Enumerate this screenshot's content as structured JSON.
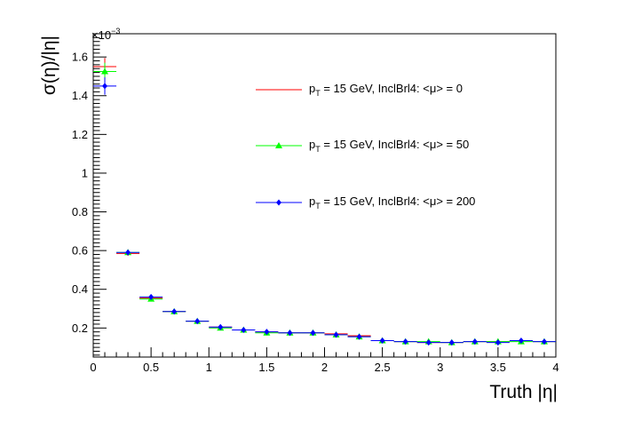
{
  "chart_data": {
    "type": "scatter",
    "xlabel": "Truth |η|",
    "ylabel": "σ(η)/|η|",
    "y_multiplier": "×10",
    "y_multiplier_exp": "−3",
    "xlim": [
      0,
      4
    ],
    "ylim": [
      0.05,
      1.72
    ],
    "xticks": [
      0,
      0.5,
      1,
      1.5,
      2,
      2.5,
      3,
      3.5,
      4
    ],
    "xtick_labels": [
      "0",
      "0.5",
      "1",
      "1.5",
      "2",
      "2.5",
      "3",
      "3.5",
      "4"
    ],
    "yticks": [
      0.2,
      0.4,
      0.6,
      0.8,
      1,
      1.2,
      1.4,
      1.6
    ],
    "ytick_labels": [
      "0.2",
      "0.4",
      "0.6",
      "0.8",
      "1",
      "1.2",
      "1.4",
      "1.6"
    ],
    "bin_half_width": 0.1,
    "x": [
      0.1,
      0.3,
      0.5,
      0.7,
      0.9,
      1.1,
      1.3,
      1.5,
      1.7,
      1.9,
      2.1,
      2.3,
      2.5,
      2.7,
      2.9,
      3.1,
      3.3,
      3.5,
      3.7,
      3.9
    ],
    "series": [
      {
        "name": "p_T = 15 GeV, InclBrl4: <μ> = 0",
        "legend_main": "p",
        "legend_sub": "T",
        "legend_rest": " = 15 GeV, InclBrl4: <μ> = 0",
        "color": "#ff0000",
        "marker": "none",
        "values": [
          1.55,
          0.585,
          0.355,
          0.285,
          0.235,
          0.205,
          0.19,
          0.18,
          0.175,
          0.175,
          0.17,
          0.16,
          0.135,
          0.13,
          0.125,
          0.125,
          0.13,
          0.13,
          0.135,
          0.13
        ],
        "errors": [
          0.045,
          0.012,
          0.008,
          0.006,
          0.005,
          0.005,
          0.004,
          0.004,
          0.004,
          0.004,
          0.004,
          0.004,
          0.003,
          0.003,
          0.003,
          0.003,
          0.003,
          0.003,
          0.003,
          0.003
        ]
      },
      {
        "name": "p_T = 15 GeV, InclBrl4: <μ> = 50",
        "legend_main": "p",
        "legend_sub": "T",
        "legend_rest": " = 15 GeV, InclBrl4: <μ> = 50",
        "color": "#00ff00",
        "marker": "triangle",
        "values": [
          1.525,
          0.59,
          0.35,
          0.285,
          0.235,
          0.2,
          0.19,
          0.175,
          0.175,
          0.175,
          0.165,
          0.155,
          0.135,
          0.13,
          0.13,
          0.125,
          0.13,
          0.13,
          0.13,
          0.13
        ],
        "errors": [
          0.045,
          0.012,
          0.008,
          0.006,
          0.005,
          0.005,
          0.004,
          0.004,
          0.004,
          0.004,
          0.004,
          0.004,
          0.003,
          0.003,
          0.003,
          0.003,
          0.003,
          0.003,
          0.003,
          0.003
        ]
      },
      {
        "name": "p_T = 15 GeV, InclBrl4: <μ> = 200",
        "legend_main": "p",
        "legend_sub": "T",
        "legend_rest": " = 15 GeV, InclBrl4: <μ> = 200",
        "color": "#0000ff",
        "marker": "diamond",
        "values": [
          1.45,
          0.59,
          0.36,
          0.285,
          0.235,
          0.205,
          0.19,
          0.18,
          0.175,
          0.175,
          0.165,
          0.155,
          0.135,
          0.13,
          0.125,
          0.125,
          0.13,
          0.125,
          0.135,
          0.13
        ],
        "errors": [
          0.045,
          0.012,
          0.008,
          0.006,
          0.005,
          0.005,
          0.004,
          0.004,
          0.004,
          0.004,
          0.004,
          0.004,
          0.003,
          0.003,
          0.003,
          0.003,
          0.003,
          0.003,
          0.003,
          0.003
        ]
      }
    ],
    "legend_placement": "upper-right inside plot, no frame",
    "grid": false
  }
}
